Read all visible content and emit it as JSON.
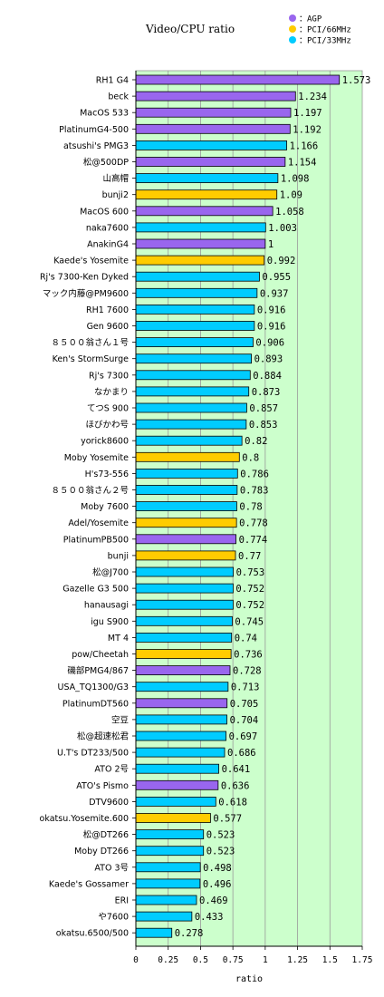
{
  "chart_data": {
    "type": "bar",
    "orientation": "horizontal",
    "title": "Video/CPU ratio",
    "xlabel": "ratio",
    "xlim": [
      0,
      1.75
    ],
    "xticks": [
      "0",
      "0.25",
      "0.5",
      "0.75",
      "1",
      "1.25",
      "1.5",
      "1.75"
    ],
    "grid": true,
    "legend_position": "top-right",
    "legend": [
      {
        "key": "agp",
        "label": "：AGP",
        "color": "#9966ee"
      },
      {
        "key": "pci66",
        "label": "：PCI/66MHz",
        "color": "#ffcc00"
      },
      {
        "key": "pci33",
        "label": "：PCI/33MHz",
        "color": "#00ccff"
      }
    ],
    "colors": {
      "agp": "#9966ee",
      "pci66": "#ffcc00",
      "pci33": "#00ccff",
      "plot_bg": "#ccffcc"
    },
    "bars": [
      {
        "label": "RH1 G4",
        "value": 1.573,
        "display": "1.573",
        "bus": "agp"
      },
      {
        "label": "beck",
        "value": 1.234,
        "display": "1.234",
        "bus": "agp"
      },
      {
        "label": "MacOS 533",
        "value": 1.197,
        "display": "1.197",
        "bus": "agp"
      },
      {
        "label": "PlatinumG4-500",
        "value": 1.192,
        "display": "1.192",
        "bus": "agp"
      },
      {
        "label": "atsushi's PMG3",
        "value": 1.166,
        "display": "1.166",
        "bus": "pci33"
      },
      {
        "label": "松@500DP",
        "value": 1.154,
        "display": "1.154",
        "bus": "agp"
      },
      {
        "label": "山高帽",
        "value": 1.098,
        "display": "1.098",
        "bus": "pci33"
      },
      {
        "label": "bunji2",
        "value": 1.09,
        "display": "1.09",
        "bus": "pci66"
      },
      {
        "label": "MacOS 600",
        "value": 1.058,
        "display": "1.058",
        "bus": "agp"
      },
      {
        "label": "naka7600",
        "value": 1.003,
        "display": "1.003",
        "bus": "pci33"
      },
      {
        "label": "AnakinG4",
        "value": 1,
        "display": "1",
        "bus": "agp"
      },
      {
        "label": "Kaede's Yosemite",
        "value": 0.992,
        "display": "0.992",
        "bus": "pci66"
      },
      {
        "label": "Rj's 7300-Ken Dyked",
        "value": 0.955,
        "display": "0.955",
        "bus": "pci33"
      },
      {
        "label": "マック内藤@PM9600",
        "value": 0.937,
        "display": "0.937",
        "bus": "pci33"
      },
      {
        "label": "RH1 7600",
        "value": 0.916,
        "display": "0.916",
        "bus": "pci33"
      },
      {
        "label": "Gen 9600",
        "value": 0.916,
        "display": "0.916",
        "bus": "pci33"
      },
      {
        "label": "８５００翁さん１号",
        "value": 0.906,
        "display": "0.906",
        "bus": "pci33"
      },
      {
        "label": "Ken's StormSurge",
        "value": 0.893,
        "display": "0.893",
        "bus": "pci33"
      },
      {
        "label": "Rj's 7300",
        "value": 0.884,
        "display": "0.884",
        "bus": "pci33"
      },
      {
        "label": "なかまり",
        "value": 0.873,
        "display": "0.873",
        "bus": "pci33"
      },
      {
        "label": "てつS 900",
        "value": 0.857,
        "display": "0.857",
        "bus": "pci33"
      },
      {
        "label": "ほびかわ号",
        "value": 0.853,
        "display": "0.853",
        "bus": "pci33"
      },
      {
        "label": "yorick8600",
        "value": 0.82,
        "display": "0.82",
        "bus": "pci33"
      },
      {
        "label": "Moby Yosemite",
        "value": 0.8,
        "display": "0.8",
        "bus": "pci66"
      },
      {
        "label": "H's73-556",
        "value": 0.786,
        "display": "0.786",
        "bus": "pci33"
      },
      {
        "label": "８５００翁さん２号",
        "value": 0.783,
        "display": "0.783",
        "bus": "pci33"
      },
      {
        "label": "Moby 7600",
        "value": 0.78,
        "display": "0.78",
        "bus": "pci33"
      },
      {
        "label": "Adel/Yosemite",
        "value": 0.778,
        "display": "0.778",
        "bus": "pci66"
      },
      {
        "label": "PlatinumPB500",
        "value": 0.774,
        "display": "0.774",
        "bus": "agp"
      },
      {
        "label": "bunji",
        "value": 0.77,
        "display": "0.77",
        "bus": "pci66"
      },
      {
        "label": "松@J700",
        "value": 0.753,
        "display": "0.753",
        "bus": "pci33"
      },
      {
        "label": "Gazelle G3 500",
        "value": 0.752,
        "display": "0.752",
        "bus": "pci33"
      },
      {
        "label": "hanausagi",
        "value": 0.752,
        "display": "0.752",
        "bus": "pci33"
      },
      {
        "label": "igu S900",
        "value": 0.745,
        "display": "0.745",
        "bus": "pci33"
      },
      {
        "label": "MT 4",
        "value": 0.74,
        "display": "0.74",
        "bus": "pci33"
      },
      {
        "label": "pow/Cheetah",
        "value": 0.736,
        "display": "0.736",
        "bus": "pci66"
      },
      {
        "label": "磯部PMG4/867",
        "value": 0.728,
        "display": "0.728",
        "bus": "agp"
      },
      {
        "label": "USA_TQ1300/G3",
        "value": 0.713,
        "display": "0.713",
        "bus": "pci33"
      },
      {
        "label": "PlatinumDT560",
        "value": 0.705,
        "display": "0.705",
        "bus": "agp"
      },
      {
        "label": "空豆",
        "value": 0.704,
        "display": "0.704",
        "bus": "pci33"
      },
      {
        "label": "松@超速松君",
        "value": 0.697,
        "display": "0.697",
        "bus": "pci33"
      },
      {
        "label": "U.T's DT233/500",
        "value": 0.686,
        "display": "0.686",
        "bus": "pci33"
      },
      {
        "label": "ATO 2号",
        "value": 0.641,
        "display": "0.641",
        "bus": "pci33"
      },
      {
        "label": "ATO's Pismo",
        "value": 0.636,
        "display": "0.636",
        "bus": "agp"
      },
      {
        "label": "DTV9600",
        "value": 0.618,
        "display": "0.618",
        "bus": "pci33"
      },
      {
        "label": "okatsu.Yosemite.600",
        "value": 0.577,
        "display": "0.577",
        "bus": "pci66"
      },
      {
        "label": "松@DT266",
        "value": 0.523,
        "display": "0.523",
        "bus": "pci33"
      },
      {
        "label": "Moby DT266",
        "value": 0.523,
        "display": "0.523",
        "bus": "pci33"
      },
      {
        "label": "ATO 3号",
        "value": 0.498,
        "display": "0.498",
        "bus": "pci33"
      },
      {
        "label": "Kaede's Gossamer",
        "value": 0.496,
        "display": "0.496",
        "bus": "pci33"
      },
      {
        "label": "ERI",
        "value": 0.469,
        "display": "0.469",
        "bus": "pci33"
      },
      {
        "label": "や7600",
        "value": 0.433,
        "display": "0.433",
        "bus": "pci33"
      },
      {
        "label": "okatsu.6500/500",
        "value": 0.278,
        "display": "0.278",
        "bus": "pci33"
      }
    ]
  }
}
